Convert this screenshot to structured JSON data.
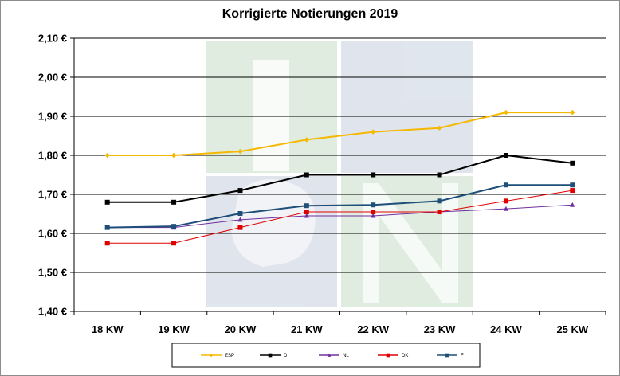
{
  "chart_data": {
    "type": "line",
    "title": "Korrigierte Notierungen 2019",
    "xlabel": "",
    "ylabel": "",
    "categories": [
      "18 KW",
      "19 KW",
      "20 KW",
      "21 KW",
      "22 KW",
      "23 KW",
      "24 KW",
      "25 KW"
    ],
    "ylim": [
      1.4,
      2.1
    ],
    "yticks": [
      "1,40 €",
      "1,50 €",
      "1,60 €",
      "1,70 €",
      "1,80 €",
      "1,90 €",
      "2,00 €",
      "2,10 €"
    ],
    "grid": true,
    "legend_position": "bottom",
    "series": [
      {
        "name": "ESP",
        "color": "#f5b800",
        "marker": "diamond",
        "values": [
          1.8,
          1.8,
          1.81,
          1.84,
          1.86,
          1.87,
          1.91,
          1.91
        ]
      },
      {
        "name": "D",
        "color": "#000000",
        "marker": "square",
        "values": [
          1.68,
          1.68,
          1.71,
          1.75,
          1.75,
          1.75,
          1.8,
          1.78
        ]
      },
      {
        "name": "NL",
        "color": "#7030a0",
        "marker": "triangle",
        "values": [
          1.615,
          1.615,
          1.635,
          1.645,
          1.645,
          1.655,
          1.663,
          1.673
        ]
      },
      {
        "name": "DK",
        "color": "#e00000",
        "marker": "square",
        "values": [
          1.575,
          1.575,
          1.615,
          1.655,
          1.655,
          1.655,
          1.683,
          1.71
        ]
      },
      {
        "name": "F",
        "color": "#1f4e79",
        "marker": "square",
        "values": [
          1.615,
          1.618,
          1.651,
          1.671,
          1.673,
          1.683,
          1.724,
          1.724
        ]
      }
    ]
  }
}
